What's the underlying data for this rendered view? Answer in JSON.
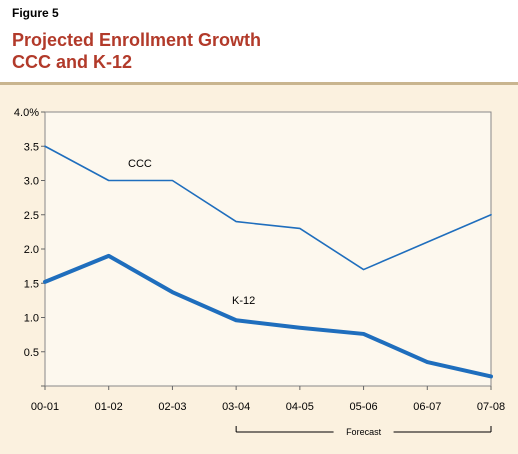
{
  "figure_label": "Figure 5",
  "title_line1": "Projected Enrollment Growth",
  "title_line2": "CCC and K-12",
  "forecast_label": "Forecast",
  "colors": {
    "title": "#b23a2a",
    "line": "#1f6ebd",
    "plot_bg": "#fbf1df"
  },
  "chart_data": {
    "type": "line",
    "categories": [
      "00-01",
      "01-02",
      "02-03",
      "03-04",
      "04-05",
      "05-06",
      "06-07",
      "07-08"
    ],
    "ylim": [
      0,
      4.0
    ],
    "yticks": [
      "",
      "0.5",
      "1.0",
      "1.5",
      "2.0",
      "2.5",
      "3.0",
      "3.5",
      "4.0%"
    ],
    "grid": false,
    "series": [
      {
        "name": "CCC",
        "values": [
          3.5,
          3.0,
          3.0,
          2.4,
          2.3,
          1.7,
          2.1,
          2.5
        ]
      },
      {
        "name": "K-12",
        "values": [
          1.52,
          1.9,
          1.37,
          0.96,
          0.85,
          0.76,
          0.35,
          0.14
        ]
      }
    ],
    "forecast_range": [
      "03-04",
      "07-08"
    ]
  }
}
